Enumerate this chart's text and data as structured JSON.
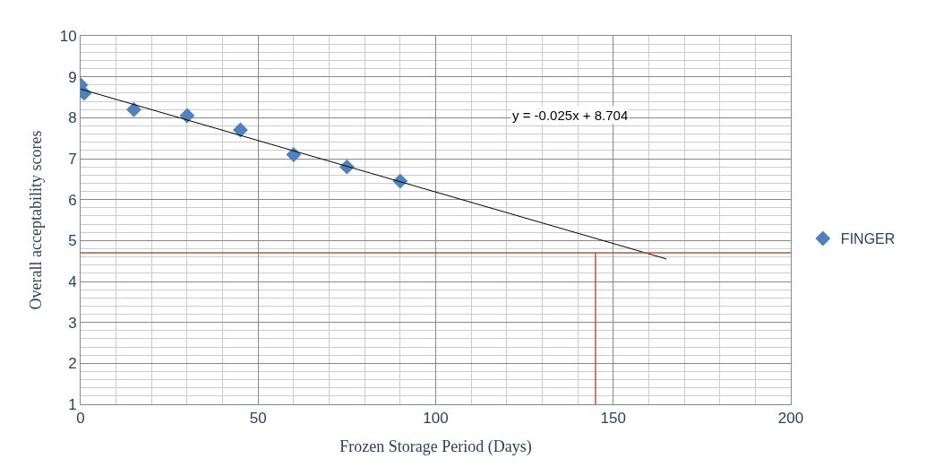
{
  "chart_data": {
    "type": "scatter",
    "xlabel": "Frozen Storage Period (Days)",
    "ylabel": "Overall acceptability scores",
    "series": [
      {
        "name": "FINGER",
        "color": "#4f81bd",
        "marker": "diamond",
        "x": [
          0,
          1,
          15,
          30,
          45,
          60,
          75,
          90
        ],
        "values": [
          8.8,
          8.6,
          8.2,
          8.05,
          7.7,
          7.1,
          6.8,
          6.45
        ]
      },
      {
        "type": "line",
        "color": "#000000",
        "marker": "none",
        "line_style": "solid",
        "x": [
          0,
          165
        ],
        "values": [
          8.7,
          4.55
        ]
      }
    ],
    "annotations": [
      "y = -0.025x + 8.704"
    ],
    "ref_lines": [
      {
        "axis": "y",
        "value": 4.7,
        "color": "#c0504d"
      },
      {
        "axis": "x",
        "value": 145,
        "color": "#c0504d"
      }
    ],
    "xlim": [
      0,
      200
    ],
    "xticks": [
      0,
      50,
      100,
      150,
      200
    ],
    "ylim": [
      1,
      10
    ],
    "yticks": [
      1,
      2,
      3,
      4,
      5,
      6,
      7,
      8,
      9,
      10
    ],
    "grid": true,
    "legend": "right"
  }
}
